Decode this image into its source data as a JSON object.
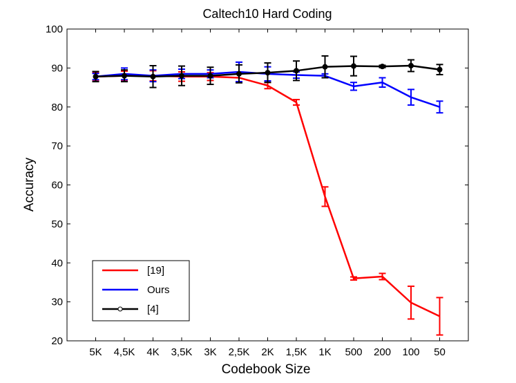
{
  "chart_data": {
    "type": "line",
    "title": "Caltech10 Hard Coding",
    "xlabel": "Codebook Size",
    "ylabel": "Accuracy",
    "ylim": [
      20,
      100
    ],
    "yticks": [
      20,
      30,
      40,
      50,
      60,
      70,
      80,
      90,
      100
    ],
    "categories": [
      "5K",
      "4,5K",
      "4K",
      "3,5K",
      "3K",
      "2,5K",
      "2K",
      "1,5K",
      "1K",
      "500",
      "200",
      "100",
      "50"
    ],
    "grid": false,
    "legend_position": "bottom-left",
    "series": [
      {
        "name": "[19]",
        "color": "#ff0000",
        "marker": "none",
        "values": [
          87.8,
          88.0,
          88.0,
          87.8,
          87.8,
          87.5,
          85.5,
          81.2,
          57.0,
          36.0,
          36.5,
          29.8,
          26.3
        ],
        "err": [
          1.0,
          1.2,
          1.3,
          1.2,
          1.0,
          1.0,
          0.8,
          0.7,
          2.5,
          0.4,
          0.8,
          4.2,
          4.8
        ]
      },
      {
        "name": "Ours",
        "color": "#0000ff",
        "marker": "none",
        "values": [
          87.8,
          88.5,
          88.0,
          88.5,
          88.5,
          89.0,
          88.5,
          88.2,
          88.0,
          85.3,
          86.3,
          82.5,
          80.0
        ],
        "err": [
          0.8,
          1.5,
          1.5,
          1.2,
          1.0,
          2.5,
          1.8,
          0.8,
          0.5,
          1.0,
          1.2,
          2.0,
          1.5
        ]
      },
      {
        "name": "[4]",
        "color": "#000000",
        "marker": "circle",
        "values": [
          87.8,
          88.0,
          87.8,
          88.0,
          88.0,
          88.5,
          88.8,
          89.3,
          90.3,
          90.5,
          90.4,
          90.6,
          89.6
        ],
        "err": [
          1.3,
          1.5,
          2.8,
          2.5,
          2.2,
          2.3,
          2.5,
          2.5,
          2.8,
          2.5,
          0.3,
          1.5,
          1.3
        ]
      }
    ]
  }
}
